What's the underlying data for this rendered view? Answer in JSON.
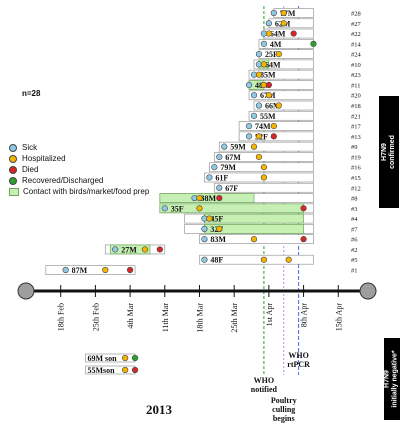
{
  "legend": {
    "n_label": "n=28",
    "items": [
      {
        "label": "Sick",
        "color": "#8ecae6",
        "kind": "dot"
      },
      {
        "label": "Hospitalized",
        "color": "#f4b400",
        "kind": "dot"
      },
      {
        "label": "Died",
        "color": "#d62728",
        "kind": "dot"
      },
      {
        "label": "Recovered/Discharged",
        "color": "#2ca02c",
        "kind": "dot"
      },
      {
        "label": "Contact with birds/market/food prep",
        "color": "#c6efb3",
        "kind": "swatch"
      }
    ]
  },
  "side_labels": {
    "confirmed": "H7N9\nconfirmed",
    "negative": "H7N9\ninitially negative*"
  },
  "year_label": "2013",
  "chart_data": {
    "type": "timeline",
    "x_axis": {
      "start": "2013-02-11",
      "end": "2013-04-21",
      "ticks": [
        "18th Feb",
        "25th Feb",
        "4th Mar",
        "11th Mar",
        "18th Mar",
        "25th Mar",
        "1st Apr",
        "8th Apr",
        "15th Apr"
      ],
      "tick_dates": [
        "2013-02-18",
        "2013-02-25",
        "2013-03-04",
        "2013-03-11",
        "2013-03-18",
        "2013-03-25",
        "2013-04-01",
        "2013-04-08",
        "2013-04-15"
      ]
    },
    "markers": [
      {
        "label": "WHO\nnotified",
        "date": "2013-03-31",
        "color": "#2ca02c"
      },
      {
        "label": "Poultry\nculling\nbegins",
        "date": "2013-04-04",
        "color": "#c77dff"
      },
      {
        "label": "WHO\nrtPCR",
        "date": "2013-04-07",
        "color": "#4169e1"
      }
    ],
    "confirmed_cases": [
      {
        "id": "#28",
        "label": "77M",
        "start": "2013-04-02",
        "end": "2013-04-10",
        "contact": null,
        "events": [
          {
            "type": "sick",
            "date": "2013-04-02"
          },
          {
            "type": "hospitalized",
            "date": "2013-04-04"
          }
        ]
      },
      {
        "id": "#27",
        "label": "62M",
        "start": "2013-04-01",
        "end": "2013-04-10",
        "contact": null,
        "events": [
          {
            "type": "sick",
            "date": "2013-04-01"
          },
          {
            "type": "hospitalized",
            "date": "2013-04-04"
          }
        ]
      },
      {
        "id": "#22",
        "label": "64M",
        "start": "2013-03-31",
        "end": "2013-04-10",
        "contact": null,
        "events": [
          {
            "type": "sick",
            "date": "2013-03-31"
          },
          {
            "type": "hospitalized",
            "date": "2013-04-01"
          },
          {
            "type": "died",
            "date": "2013-04-06"
          }
        ]
      },
      {
        "id": "#14",
        "label": "4M",
        "start": "2013-03-30",
        "end": "2013-04-10",
        "contact": null,
        "events": [
          {
            "type": "sick",
            "date": "2013-03-31"
          },
          {
            "type": "recovered",
            "date": "2013-04-10"
          }
        ]
      },
      {
        "id": "#24",
        "label": "25F",
        "start": "2013-03-30",
        "end": "2013-04-10",
        "contact": null,
        "events": [
          {
            "type": "sick",
            "date": "2013-03-30"
          },
          {
            "type": "hospitalized",
            "date": "2013-04-03"
          }
        ]
      },
      {
        "id": "#10",
        "label": "64M",
        "start": "2013-03-29",
        "end": "2013-04-10",
        "contact": {
          "start": "2013-03-30",
          "end": "2013-04-01"
        },
        "events": [
          {
            "type": "sick",
            "date": "2013-03-30"
          },
          {
            "type": "hospitalized",
            "date": "2013-03-31"
          }
        ]
      },
      {
        "id": "#23",
        "label": "85M",
        "start": "2013-03-28",
        "end": "2013-04-10",
        "contact": null,
        "events": [
          {
            "type": "sick",
            "date": "2013-03-29"
          },
          {
            "type": "hospitalized",
            "date": "2013-03-30"
          }
        ]
      },
      {
        "id": "#11",
        "label": "48M",
        "start": "2013-03-28",
        "end": "2013-04-10",
        "contact": {
          "start": "2013-03-28",
          "end": "2013-03-31"
        },
        "events": [
          {
            "type": "sick",
            "date": "2013-03-28"
          },
          {
            "type": "hospitalized",
            "date": "2013-03-31"
          },
          {
            "type": "died",
            "date": "2013-04-01"
          }
        ]
      },
      {
        "id": "#20",
        "label": "67M",
        "start": "2013-03-28",
        "end": "2013-04-10",
        "contact": null,
        "events": [
          {
            "type": "sick",
            "date": "2013-03-29"
          },
          {
            "type": "hospitalized",
            "date": "2013-04-01"
          }
        ]
      },
      {
        "id": "#18",
        "label": "66M",
        "start": "2013-03-29",
        "end": "2013-04-10",
        "contact": null,
        "events": [
          {
            "type": "sick",
            "date": "2013-03-30"
          },
          {
            "type": "hospitalized",
            "date": "2013-04-03"
          }
        ]
      },
      {
        "id": "#21",
        "label": "55M",
        "start": "2013-03-28",
        "end": "2013-04-10",
        "contact": null,
        "events": [
          {
            "type": "sick",
            "date": "2013-03-29"
          }
        ]
      },
      {
        "id": "#17",
        "label": "74M",
        "start": "2013-03-26",
        "end": "2013-04-10",
        "contact": null,
        "events": [
          {
            "type": "sick",
            "date": "2013-03-28"
          },
          {
            "type": "hospitalized",
            "date": "2013-04-02"
          }
        ]
      },
      {
        "id": "#13",
        "label": "52F",
        "start": "2013-03-26",
        "end": "2013-04-10",
        "contact": null,
        "events": [
          {
            "type": "sick",
            "date": "2013-03-28"
          },
          {
            "type": "hospitalized",
            "date": "2013-03-30"
          },
          {
            "type": "died",
            "date": "2013-04-02"
          }
        ]
      },
      {
        "id": "#9",
        "label": "59M",
        "start": "2013-03-22",
        "end": "2013-04-10",
        "contact": null,
        "events": [
          {
            "type": "sick",
            "date": "2013-03-23"
          },
          {
            "type": "hospitalized",
            "date": "2013-03-29"
          }
        ]
      },
      {
        "id": "#19",
        "label": "67M",
        "start": "2013-03-21",
        "end": "2013-04-10",
        "contact": null,
        "events": [
          {
            "type": "sick",
            "date": "2013-03-22"
          },
          {
            "type": "hospitalized",
            "date": "2013-03-30"
          }
        ]
      },
      {
        "id": "#16",
        "label": "79M",
        "start": "2013-03-20",
        "end": "2013-04-10",
        "contact": null,
        "events": [
          {
            "type": "sick",
            "date": "2013-03-21"
          },
          {
            "type": "hospitalized",
            "date": "2013-03-31"
          }
        ]
      },
      {
        "id": "#15",
        "label": "61F",
        "start": "2013-03-19",
        "end": "2013-04-10",
        "contact": null,
        "events": [
          {
            "type": "sick",
            "date": "2013-03-20"
          },
          {
            "type": "hospitalized",
            "date": "2013-03-31"
          }
        ]
      },
      {
        "id": "#12",
        "label": "67F",
        "start": "2013-03-21",
        "end": "2013-04-10",
        "contact": null,
        "events": [
          {
            "type": "sick",
            "date": "2013-03-22"
          }
        ]
      },
      {
        "id": "#8",
        "label": "38M",
        "start": "2013-03-10",
        "end": "2013-04-10",
        "contact": {
          "start": "2013-03-10",
          "end": "2013-03-29"
        },
        "events": [
          {
            "type": "sick",
            "date": "2013-03-17"
          },
          {
            "type": "hospitalized",
            "date": "2013-03-18"
          },
          {
            "type": "died",
            "date": "2013-03-22"
          }
        ]
      },
      {
        "id": "#3",
        "label": "35F",
        "start": "2013-03-10",
        "end": "2013-04-10",
        "contact": {
          "start": "2013-03-10",
          "end": "2013-04-08"
        },
        "events": [
          {
            "type": "sick",
            "date": "2013-03-11"
          },
          {
            "type": "hospitalized",
            "date": "2013-03-18"
          },
          {
            "type": "died",
            "date": "2013-04-08"
          }
        ]
      },
      {
        "id": "#4",
        "label": "45F",
        "start": "2013-03-15",
        "end": "2013-04-10",
        "contact": {
          "start": "2013-03-19",
          "end": "2013-04-08"
        },
        "events": [
          {
            "type": "sick",
            "date": "2013-03-19"
          },
          {
            "type": "hospitalized",
            "date": "2013-03-20"
          }
        ]
      },
      {
        "id": "#7",
        "label": "32F",
        "start": "2013-03-15",
        "end": "2013-04-10",
        "contact": {
          "start": "2013-03-19",
          "end": "2013-04-08"
        },
        "events": [
          {
            "type": "sick",
            "date": "2013-03-19"
          },
          {
            "type": "hospitalized",
            "date": "2013-03-22"
          }
        ]
      },
      {
        "id": "#6",
        "label": "83M",
        "start": "2013-03-18",
        "end": "2013-04-10",
        "contact": null,
        "events": [
          {
            "type": "sick",
            "date": "2013-03-19"
          },
          {
            "type": "hospitalized",
            "date": "2013-03-29"
          },
          {
            "type": "died",
            "date": "2013-04-08"
          }
        ]
      },
      {
        "id": "#2",
        "label": "27M",
        "start": "2013-02-27",
        "end": "2013-03-11",
        "contact": {
          "start": "2013-02-28",
          "end": "2013-03-08"
        },
        "events": [
          {
            "type": "sick",
            "date": "2013-03-01"
          },
          {
            "type": "hospitalized",
            "date": "2013-03-07"
          },
          {
            "type": "died",
            "date": "2013-03-10"
          }
        ]
      },
      {
        "id": "#5",
        "label": "48F",
        "start": "2013-03-18",
        "end": "2013-04-10",
        "contact": null,
        "events": [
          {
            "type": "sick",
            "date": "2013-03-19"
          },
          {
            "type": "hospitalized",
            "date": "2013-03-31"
          },
          {
            "type": "hospitalized",
            "date": "2013-04-05"
          }
        ]
      },
      {
        "id": "#1",
        "label": "87M",
        "start": "2013-02-15",
        "end": "2013-03-05",
        "contact": null,
        "events": [
          {
            "type": "sick",
            "date": "2013-02-19"
          },
          {
            "type": "hospitalized",
            "date": "2013-02-27"
          },
          {
            "type": "died",
            "date": "2013-03-04"
          }
        ]
      }
    ],
    "negative_cases": [
      {
        "label": "69M son",
        "start": "2013-02-23",
        "end": "2013-03-05",
        "events": [
          {
            "type": "hospitalized",
            "date": "2013-03-03"
          },
          {
            "type": "recovered",
            "date": "2013-03-05"
          }
        ]
      },
      {
        "label": "55Mson",
        "start": "2013-02-23",
        "end": "2013-03-05",
        "events": [
          {
            "type": "hospitalized",
            "date": "2013-03-03"
          },
          {
            "type": "died",
            "date": "2013-03-05"
          }
        ]
      }
    ]
  }
}
